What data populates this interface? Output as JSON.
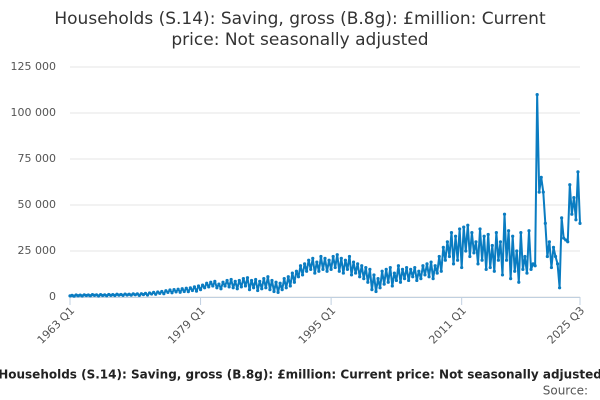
{
  "chart_data": {
    "type": "line",
    "title": [
      "Households (S.14): Saving, gross (B.8g): £million: Current",
      "price: Not seasonally adjusted"
    ],
    "footer_title": "Households (S.14): Saving, gross (B.8g): £million: Current price: Not seasonally adjusted",
    "source": "Source:",
    "color": "#0a7cc1",
    "grid": true,
    "ylim": [
      0,
      125000
    ],
    "yticks": [
      0,
      {
        "value": 25000,
        "label": "25 000"
      },
      {
        "value": 50000,
        "label": "50 000"
      },
      {
        "value": 75000,
        "label": "75 000"
      },
      {
        "value": 100000,
        "label": "100 000"
      },
      {
        "value": 125000,
        "label": "125 000"
      }
    ],
    "categories": [
      "1963 Q1",
      null,
      null,
      null,
      null,
      null,
      null,
      null,
      null,
      null,
      null,
      null,
      null,
      null,
      null,
      null,
      null,
      null,
      null,
      null,
      null,
      null,
      null,
      null,
      null,
      null,
      null,
      null,
      null,
      null,
      null,
      null,
      null,
      null,
      null,
      null,
      null,
      null,
      null,
      null,
      null,
      null,
      null,
      null,
      null,
      null,
      null,
      null,
      null,
      null,
      null,
      null,
      null,
      null,
      null,
      null,
      null,
      null,
      null,
      null,
      null,
      null,
      null,
      null,
      "1979 Q1",
      null,
      null,
      null,
      null,
      null,
      null,
      null,
      null,
      null,
      null,
      null,
      null,
      null,
      null,
      null,
      null,
      null,
      null,
      null,
      null,
      null,
      null,
      null,
      null,
      null,
      null,
      null,
      null,
      null,
      null,
      null,
      null,
      null,
      null,
      null,
      null,
      null,
      null,
      null,
      null,
      null,
      null,
      null,
      null,
      null,
      null,
      null,
      null,
      null,
      null,
      null,
      null,
      null,
      null,
      null,
      null,
      null,
      null,
      null,
      null,
      null,
      null,
      null,
      "1995 Q1",
      null,
      null,
      null,
      null,
      null,
      null,
      null,
      null,
      null,
      null,
      null,
      null,
      null,
      null,
      null,
      null,
      null,
      null,
      null,
      null,
      null,
      null,
      null,
      null,
      null,
      null,
      null,
      null,
      null,
      null,
      null,
      null,
      null,
      null,
      null,
      null,
      null,
      null,
      null,
      null,
      null,
      null,
      null,
      null,
      null,
      null,
      null,
      null,
      null,
      null,
      null,
      null,
      null,
      null,
      null,
      null,
      null,
      null,
      null,
      null,
      null,
      null,
      null,
      "2011 Q1",
      null,
      null,
      null,
      null,
      null,
      null,
      null,
      null,
      null,
      null,
      null,
      null,
      null,
      null,
      null,
      null,
      null,
      null,
      null,
      null,
      null,
      null,
      null,
      null,
      null,
      null,
      null,
      null,
      null,
      null,
      null,
      null,
      null,
      null,
      null,
      null,
      null,
      null,
      null,
      null,
      null,
      null,
      null,
      null,
      null,
      null,
      null,
      null,
      null,
      null,
      null,
      null,
      null,
      null,
      null,
      null,
      null,
      "2025 Q3"
    ],
    "values": [
      600,
      900,
      500,
      1100,
      700,
      1000,
      600,
      1200,
      800,
      1100,
      700,
      1300,
      900,
      1200,
      600,
      1300,
      800,
      1200,
      700,
      1400,
      900,
      1300,
      800,
      1500,
      1000,
      1400,
      900,
      1600,
      1100,
      1500,
      1000,
      1700,
      1200,
      1700,
      900,
      1800,
      1300,
      2000,
      1100,
      2200,
      1600,
      2500,
      1500,
      2700,
      2000,
      3000,
      1800,
      3400,
      2500,
      3800,
      2300,
      4000,
      2800,
      4200,
      2600,
      4500,
      3000,
      4800,
      2900,
      5000,
      3500,
      5500,
      3200,
      6000,
      4000,
      6500,
      5000,
      7500,
      5500,
      8000,
      6000,
      8500,
      5000,
      7000,
      4500,
      8000,
      6000,
      9000,
      5500,
      9500,
      5000,
      8500,
      4500,
      9000,
      5500,
      10000,
      6000,
      10500,
      4000,
      9000,
      5000,
      9500,
      3500,
      8500,
      4500,
      10000,
      5000,
      11000,
      4000,
      9000,
      3000,
      8000,
      2500,
      7500,
      4000,
      10000,
      5000,
      11000,
      6000,
      13000,
      8000,
      14000,
      11000,
      17000,
      12000,
      18000,
      14000,
      20000,
      15000,
      21000,
      13000,
      19000,
      14000,
      22000,
      15000,
      21000,
      14000,
      20000,
      15000,
      22000,
      16000,
      23000,
      14000,
      21000,
      13000,
      20000,
      15000,
      22000,
      12000,
      19000,
      13000,
      18000,
      11000,
      17000,
      10000,
      16000,
      8000,
      15000,
      4000,
      12000,
      3000,
      10000,
      5000,
      14000,
      7000,
      15000,
      8000,
      16000,
      6000,
      13000,
      9000,
      17000,
      8000,
      15000,
      10000,
      16000,
      9000,
      15000,
      11000,
      16000,
      9000,
      14000,
      10000,
      17000,
      12000,
      18000,
      11000,
      19000,
      10000,
      17000,
      13000,
      22000,
      14000,
      27000,
      20000,
      30000,
      22000,
      35000,
      18000,
      33000,
      20000,
      37000,
      16000,
      38000,
      25000,
      39000,
      22000,
      35000,
      24000,
      30000,
      18000,
      37000,
      20000,
      33000,
      15000,
      34000,
      16000,
      28000,
      14000,
      35000,
      20000,
      30000,
      12000,
      45000,
      20000,
      36000,
      10000,
      33000,
      14000,
      25000,
      8000,
      35000,
      15000,
      22000,
      13000,
      36000,
      15000,
      18000,
      17000,
      110000,
      57000,
      65000,
      57000,
      40000,
      22000,
      30000,
      16000,
      27000,
      22000,
      18000,
      5000,
      43000,
      32000,
      31000,
      30000,
      61000,
      45000,
      54000,
      42000,
      68000,
      40000
    ]
  }
}
